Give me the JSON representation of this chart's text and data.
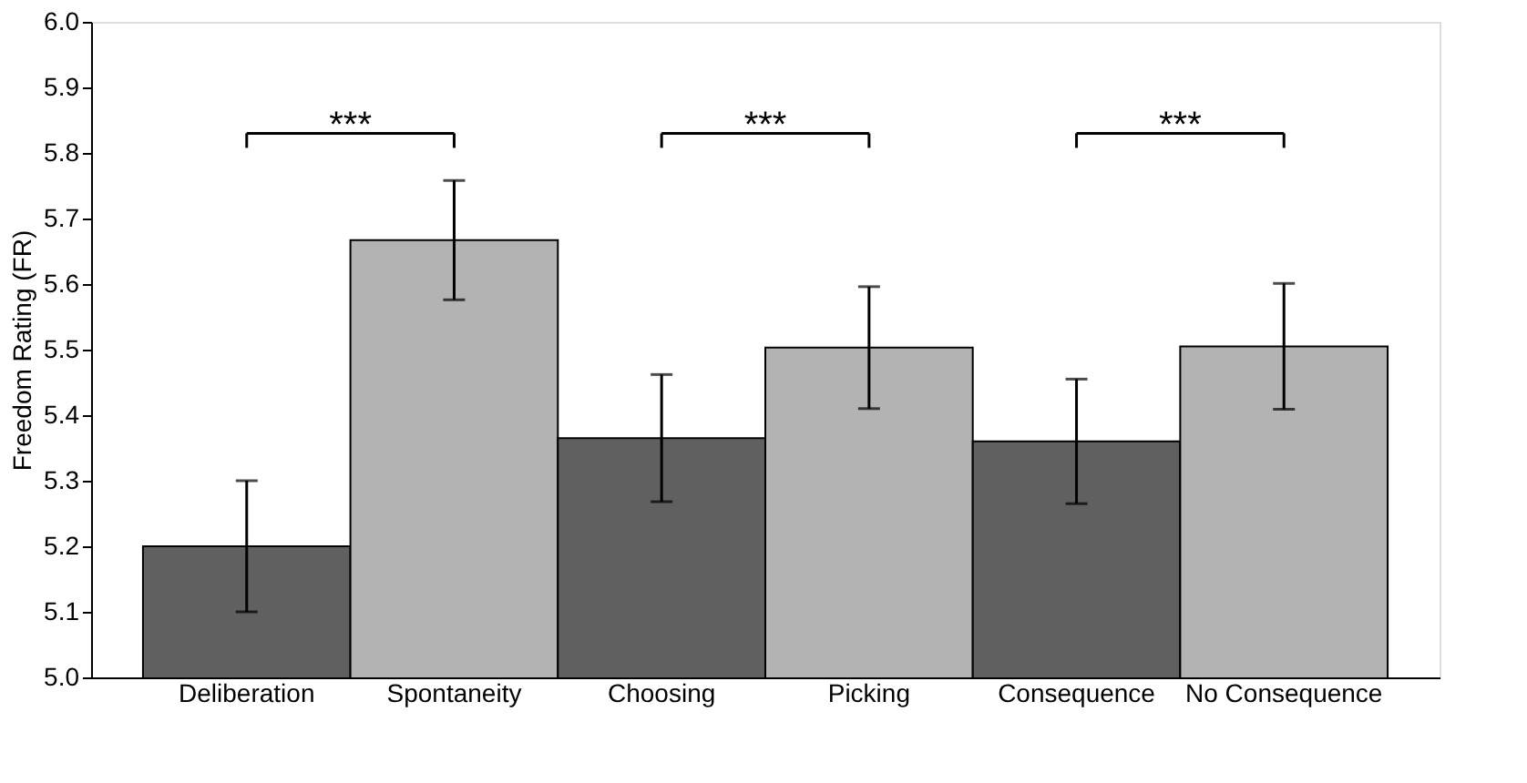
{
  "chart_data": {
    "type": "bar",
    "ylabel": "Freedom Rating (FR)",
    "categories": [
      "Deliberation",
      "Spontaneity",
      "Choosing",
      "Picking",
      "Consequence",
      "No Consequence"
    ],
    "values": [
      5.2,
      5.667,
      5.365,
      5.503,
      5.36,
      5.505
    ],
    "colors": [
      "#606060",
      "#b3b3b3",
      "#606060",
      "#b3b3b3",
      "#606060",
      "#b3b3b3"
    ],
    "errors": [
      0.1,
      0.091,
      0.097,
      0.093,
      0.095,
      0.096
    ],
    "ylim": [
      5.0,
      6.0
    ],
    "yticks": [
      {
        "value": 5.0,
        "label": "5.0"
      },
      {
        "value": 5.1,
        "label": "5.1"
      },
      {
        "value": 5.2,
        "label": "5.2"
      },
      {
        "value": 5.3,
        "label": "5.3"
      },
      {
        "value": 5.4,
        "label": "5.4"
      },
      {
        "value": 5.5,
        "label": "5.5"
      },
      {
        "value": 5.6,
        "label": "5.6"
      },
      {
        "value": 5.7,
        "label": "5.7"
      },
      {
        "value": 5.8,
        "label": "5.8"
      },
      {
        "value": 5.9,
        "label": "5.9"
      },
      {
        "value": 6.0,
        "label": "6.0"
      }
    ],
    "annotations": [
      "***",
      "***",
      "***"
    ],
    "grid": false
  }
}
